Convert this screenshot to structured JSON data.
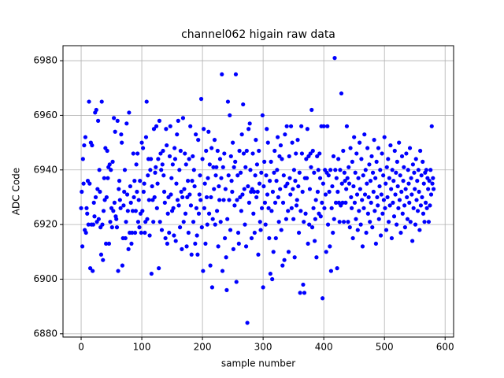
{
  "chart_data": {
    "type": "scatter",
    "title": "channel062 higain raw data",
    "x_label": "sample number",
    "y_label": "ADC Code",
    "xlim": [
      -29.9,
      614
    ],
    "ylim": [
      6878.8,
      6985.5
    ],
    "xticks": [
      0,
      100,
      200,
      300,
      400,
      500,
      600
    ],
    "yticks": [
      6880,
      6900,
      6920,
      6940,
      6960,
      6980
    ],
    "grid": true,
    "series": [
      {
        "color": "#0000ff",
        "x": [
          0,
          1,
          2,
          3,
          4,
          5,
          6,
          7,
          8,
          9,
          10,
          11,
          12,
          13,
          14,
          15,
          16,
          17,
          18,
          19,
          20,
          21,
          22,
          23,
          24,
          25,
          26,
          27,
          28,
          29,
          30,
          31,
          32,
          33,
          34,
          35,
          36,
          37,
          38,
          39,
          40,
          41,
          42,
          43,
          44,
          45,
          46,
          47,
          48,
          49,
          50,
          51,
          52,
          53,
          54,
          55,
          56,
          57,
          58,
          59,
          60,
          61,
          62,
          63,
          64,
          65,
          66,
          67,
          68,
          69,
          70,
          71,
          72,
          73,
          74,
          75,
          76,
          77,
          78,
          79,
          80,
          81,
          82,
          83,
          84,
          85,
          86,
          87,
          88,
          89,
          90,
          91,
          92,
          93,
          94,
          95,
          96,
          97,
          98,
          99,
          100,
          101,
          102,
          103,
          104,
          105,
          106,
          107,
          108,
          109,
          110,
          111,
          112,
          113,
          114,
          115,
          116,
          117,
          118,
          119,
          120,
          121,
          122,
          123,
          124,
          125,
          126,
          127,
          128,
          129,
          130,
          131,
          132,
          133,
          134,
          135,
          136,
          137,
          138,
          139,
          140,
          141,
          142,
          143,
          144,
          145,
          146,
          147,
          148,
          149,
          150,
          151,
          152,
          153,
          154,
          155,
          156,
          157,
          158,
          159,
          160,
          161,
          162,
          163,
          164,
          165,
          166,
          167,
          168,
          169,
          170,
          171,
          172,
          173,
          174,
          175,
          176,
          177,
          178,
          179,
          180,
          181,
          182,
          183,
          184,
          185,
          186,
          187,
          188,
          189,
          190,
          191,
          192,
          193,
          194,
          195,
          196,
          197,
          198,
          199,
          200,
          201,
          202,
          203,
          204,
          205,
          206,
          207,
          208,
          209,
          210,
          211,
          212,
          213,
          214,
          215,
          216,
          217,
          218,
          219,
          220,
          221,
          222,
          223,
          224,
          225,
          226,
          227,
          228,
          229,
          230,
          231,
          232,
          233,
          234,
          235,
          236,
          237,
          238,
          239,
          240,
          241,
          242,
          243,
          244,
          245,
          246,
          247,
          248,
          249,
          250,
          251,
          252,
          253,
          254,
          255,
          256,
          257,
          258,
          259,
          260,
          261,
          262,
          263,
          264,
          265,
          266,
          267,
          268,
          269,
          270,
          271,
          272,
          273,
          274,
          275,
          276,
          277,
          278,
          279,
          280,
          281,
          282,
          283,
          284,
          285,
          286,
          287,
          288,
          289,
          290,
          291,
          292,
          293,
          294,
          295,
          296,
          297,
          298,
          299,
          300,
          301,
          302,
          303,
          304,
          305,
          306,
          307,
          308,
          309,
          310,
          311,
          312,
          313,
          314,
          315,
          316,
          317,
          318,
          319,
          320,
          321,
          322,
          323,
          324,
          325,
          326,
          327,
          328,
          329,
          330,
          331,
          332,
          333,
          334,
          335,
          336,
          337,
          338,
          339,
          340,
          341,
          342,
          343,
          344,
          345,
          346,
          347,
          348,
          349,
          350,
          351,
          352,
          353,
          354,
          355,
          356,
          357,
          358,
          359,
          360,
          361,
          362,
          363,
          364,
          365,
          366,
          367,
          368,
          369,
          370,
          371,
          372,
          373,
          374,
          375,
          376,
          377,
          378,
          379,
          380,
          381,
          382,
          383,
          384,
          385,
          386,
          387,
          388,
          389,
          390,
          391,
          392,
          393,
          394,
          395,
          396,
          397,
          398,
          399,
          400,
          401,
          402,
          403,
          404,
          405,
          406,
          407,
          408,
          409,
          410,
          411,
          412,
          413,
          414,
          415,
          416,
          417,
          418,
          419,
          420,
          421,
          422,
          423,
          424,
          425,
          426,
          427,
          428,
          429,
          430,
          431,
          432,
          433,
          434,
          435,
          436,
          437,
          438,
          439,
          440,
          441,
          442,
          443,
          444,
          445,
          446,
          447,
          448,
          449,
          450,
          451,
          452,
          453,
          454,
          455,
          456,
          457,
          458,
          459,
          460,
          461,
          462,
          463,
          464,
          465,
          466,
          467,
          468,
          469,
          470,
          471,
          472,
          473,
          474,
          475,
          476,
          477,
          478,
          479,
          480,
          481,
          482,
          483,
          484,
          485,
          486,
          487,
          488,
          489,
          490,
          491,
          492,
          493,
          494,
          495,
          496,
          497,
          498,
          499,
          500,
          501,
          502,
          503,
          504,
          505,
          506,
          507,
          508,
          509,
          510,
          511,
          512,
          513,
          514,
          515,
          516,
          517,
          518,
          519,
          520,
          521,
          522,
          523,
          524,
          525,
          526,
          527,
          528,
          529,
          530,
          531,
          532,
          533,
          534,
          535,
          536,
          537,
          538,
          539,
          540,
          541,
          542,
          543,
          544,
          545,
          546,
          547,
          548,
          549,
          550,
          551,
          552,
          553,
          554,
          555,
          556,
          557,
          558,
          559,
          560,
          561,
          562,
          563,
          564,
          565,
          566,
          567,
          568,
          569,
          570,
          571,
          572,
          573,
          574,
          575,
          576,
          577,
          578,
          579,
          580,
          581
        ],
        "values": [
          6926,
          6932,
          6912,
          6944,
          6935,
          6949,
          6918,
          6952,
          6917,
          6926,
          6924,
          6936,
          6920,
          6965,
          6935,
          6904,
          6950,
          6920,
          6949,
          6903,
          6920,
          6928,
          6923,
          6961,
          6930,
          6962,
          6921,
          6933,
          6958,
          6922,
          6940,
          6932,
          6919,
          6909,
          6965,
          6920,
          6907,
          6925,
          6937,
          6929,
          6948,
          6913,
          6930,
          6947,
          6937,
          6941,
          6913,
          6942,
          6921,
          6940,
          6926,
          6919,
          6943,
          6925,
          6959,
          6928,
          6954,
          6923,
          6922,
          6919,
          6958,
          6903,
          6933,
          6936,
          6929,
          6926,
          6953,
          6950,
          6905,
          6915,
          6927,
          6932,
          6940,
          6915,
          6921,
          6957,
          6931,
          6925,
          6911,
          6961,
          6917,
          6934,
          6928,
          6913,
          6917,
          6925,
          6946,
          6930,
          6936,
          6917,
          6925,
          6942,
          6932,
          6946,
          6921,
          6929,
          6919,
          6936,
          6924,
          6917,
          6950,
          6925,
          6948,
          6932,
          6935,
          6917,
          6921,
          6952,
          6965,
          6922,
          6938,
          6944,
          6929,
          6916,
          6940,
          6944,
          6902,
          6934,
          6929,
          6921,
          6955,
          6930,
          6939,
          6941,
          6956,
          6926,
          6935,
          6944,
          6904,
          6958,
          6921,
          6946,
          6940,
          6918,
          6942,
          6947,
          6938,
          6932,
          6928,
          6915,
          6955,
          6949,
          6913,
          6924,
          6930,
          6917,
          6945,
          6956,
          6931,
          6937,
          6925,
          6942,
          6926,
          6916,
          6948,
          6944,
          6914,
          6935,
          6953,
          6929,
          6958,
          6927,
          6940,
          6919,
          6947,
          6932,
          6911,
          6930,
          6959,
          6921,
          6933,
          6946,
          6924,
          6942,
          6912,
          6930,
          6936,
          6917,
          6944,
          6931,
          6956,
          6927,
          6909,
          6936,
          6945,
          6921,
          6940,
          6934,
          6913,
          6953,
          6926,
          6916,
          6909,
          6951,
          6924,
          6931,
          6938,
          6929,
          6966,
          6919,
          6944,
          6903,
          6955,
          6926,
          6935,
          6913,
          6947,
          6930,
          6920,
          6937,
          6954,
          6924,
          6942,
          6905,
          6930,
          6948,
          6897,
          6922,
          6941,
          6933,
          6951,
          6920,
          6938,
          6941,
          6925,
          6947,
          6912,
          6934,
          6929,
          6944,
          6921,
          6937,
          6975,
          6903,
          6941,
          6929,
          6946,
          6915,
          6933,
          6908,
          6896,
          6922,
          6965,
          6938,
          6929,
          6960,
          6918,
          6945,
          6936,
          6932,
          6950,
          6911,
          6941,
          6927,
          6943,
          6975,
          6899,
          6929,
          6938,
          6917,
          6913,
          6947,
          6930,
          6939,
          6925,
          6953,
          6931,
          6964,
          6946,
          6933,
          6920,
          6941,
          6912,
          6947,
          6884,
          6934,
          6955,
          6928,
          6957,
          6940,
          6932,
          6915,
          6933,
          6946,
          6924,
          6932,
          6917,
          6938,
          6951,
          6930,
          6942,
          6932,
          6909,
          6947,
          6935,
          6921,
          6918,
          6939,
          6926,
          6960,
          6897,
          6934,
          6943,
          6928,
          6920,
          6938,
          6955,
          6931,
          6950,
          6926,
          6915,
          6936,
          6902,
          6943,
          6925,
          6900,
          6932,
          6910,
          6939,
          6947,
          6928,
          6915,
          6936,
          6940,
          6952,
          6930,
          6921,
          6945,
          6933,
          6949,
          6918,
          6944,
          6905,
          6928,
          6938,
          6907,
          6953,
          6934,
          6922,
          6956,
          6935,
          6925,
          6910,
          6945,
          6937,
          6931,
          6956,
          6926,
          6950,
          6933,
          6922,
          6940,
          6908,
          6936,
          6946,
          6927,
          6929,
          6951,
          6934,
          6917,
          6939,
          6895,
          6925,
          6956,
          6946,
          6932,
          6898,
          6921,
          6895,
          6937,
          6924,
          6944,
          6937,
          6955,
          6913,
          6945,
          6920,
          6933,
          6946,
          6941,
          6962,
          6919,
          6947,
          6926,
          6939,
          6914,
          6922,
          6929,
          6908,
          6945,
          6932,
          6940,
          6924,
          6946,
          6937,
          6923,
          6956,
          6928,
          6893,
          6935,
          6956,
          6926,
          6940,
          6931,
          6910,
          6939,
          6956,
          6920,
          6938,
          6932,
          6912,
          6940,
          6903,
          6926,
          6934,
          6917,
          6945,
          6922,
          6981,
          6940,
          6928,
          6937,
          6904,
          6932,
          6944,
          6928,
          6921,
          6940,
          6927,
          6968,
          6935,
          6928,
          6947,
          6921,
          6939,
          6936,
          6928,
          6933,
          6956,
          6937,
          6921,
          6941,
          6935,
          6919,
          6948,
          6930,
          6926,
          6943,
          6915,
          6934,
          6952,
          6928,
          6939,
          6922,
          6946,
          6931,
          6918,
          6937,
          6925,
          6950,
          6933,
          6920,
          6944,
          6929,
          6912,
          6938,
          6926,
          6953,
          6931,
          6940,
          6917,
          6935,
          6948,
          6924,
          6930,
          6942,
          6921,
          6936,
          6928,
          6945,
          6919,
          6939,
          6932,
          6951,
          6925,
          6937,
          6913,
          6943,
          6930,
          6927,
          6948,
          6922,
          6934,
          6940,
          6916,
          6931,
          6946,
          6924,
          6938,
          6929,
          6952,
          6926,
          6935,
          6918,
          6941,
          6930,
          6944,
          6921,
          6937,
          6927,
          6949,
          6933,
          6915,
          6940,
          6928,
          6936,
          6923,
          6947,
          6931,
          6939,
          6920,
          6943,
          6934,
          6926,
          6950,
          6929,
          6938,
          6917,
          6932,
          6945,
          6924,
          6936,
          6941,
          6927,
          6919,
          6933,
          6946,
          6930,
          6922,
          6940,
          6935,
          6928,
          6948,
          6921,
          6937,
          6931,
          6914,
          6942,
          6926,
          6939,
          6933,
          6920,
          6944,
          6929,
          6936,
          6925,
          6940,
          6932,
          6918,
          6947,
          6927,
          6938,
          6930,
          6943,
          6924,
          6935,
          6921,
          6939,
          6928,
          6940,
          6926,
          6937,
          6933,
          6921,
          6936,
          6927,
          6940,
          6931,
          6956,
          6935,
          6937,
          6933
        ]
      }
    ]
  }
}
